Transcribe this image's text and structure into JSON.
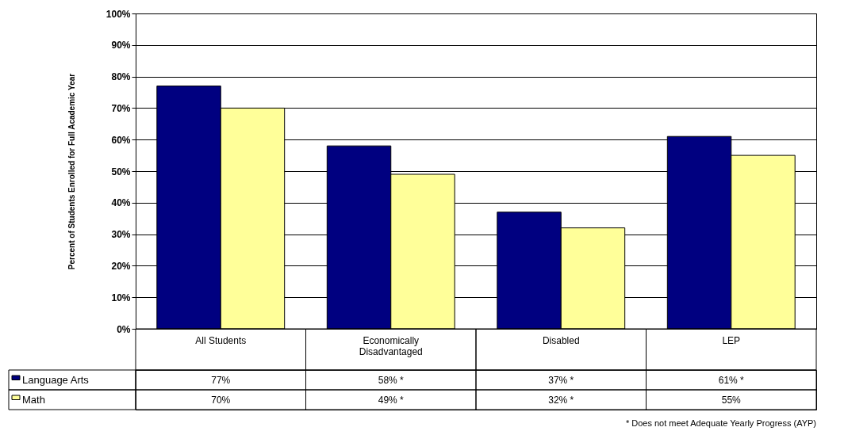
{
  "chart_data": {
    "type": "bar",
    "ylabel": "Percent of Students Enrolled for Full Academic Year",
    "categories": [
      "All Students",
      "Economically Disadvantaged",
      "Disabled",
      "LEP"
    ],
    "series": [
      {
        "name": "Language Arts",
        "color": "#000080",
        "values": [
          77,
          58,
          37,
          61
        ],
        "value_labels": [
          "77%",
          "58% *",
          "37% *",
          "61% *"
        ]
      },
      {
        "name": "Math",
        "color": "#ffff99",
        "values": [
          70,
          49,
          32,
          55
        ],
        "value_labels": [
          "70%",
          "49% *",
          "32% *",
          "55%"
        ]
      }
    ],
    "ylim": [
      0,
      100
    ],
    "yticks": [
      {
        "value": 0,
        "label": "0%"
      },
      {
        "value": 10,
        "label": "10%"
      },
      {
        "value": 20,
        "label": "20%"
      },
      {
        "value": 30,
        "label": "30%"
      },
      {
        "value": 40,
        "label": "40%"
      },
      {
        "value": 50,
        "label": "50%"
      },
      {
        "value": 60,
        "label": "60%"
      },
      {
        "value": 70,
        "label": "70%"
      },
      {
        "value": 80,
        "label": "80%"
      },
      {
        "value": 90,
        "label": "90%"
      },
      {
        "value": 100,
        "label": "100%"
      }
    ],
    "grid": "y",
    "legend": "bottom left",
    "annotations": [
      "* Does not meet Adequate Yearly Progress (AYP)"
    ]
  }
}
